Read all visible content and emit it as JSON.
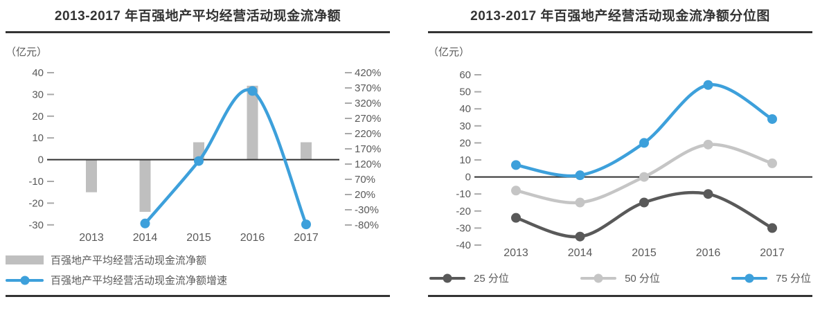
{
  "chart_data": [
    {
      "id": "avg-cashflow",
      "type": "bar+line",
      "title": "2013-2017 年百强地产平均经营活动现金流净额",
      "unit_label": "（亿元）",
      "categories": [
        "2013",
        "2014",
        "2015",
        "2016",
        "2017"
      ],
      "series": [
        {
          "name": "百强地产平均经营活动现金流净额",
          "type": "bar",
          "axis": "left",
          "color": "#bfbfbf",
          "values": [
            -15,
            -24,
            8,
            34,
            8
          ]
        },
        {
          "name": "百强地产平均经营活动现金流净额增速",
          "type": "line",
          "axis": "right",
          "color": "#3da0db",
          "values": [
            null,
            -75,
            130,
            360,
            -78
          ]
        }
      ],
      "left_axis": {
        "max": 40,
        "min": -30,
        "step": 10,
        "ticks": [
          "40",
          "30",
          "20",
          "10",
          "0",
          "-10",
          "-20",
          "-30"
        ]
      },
      "right_axis": {
        "max": 420,
        "min": -80,
        "step": 50,
        "ticks": [
          "420%",
          "370%",
          "320%",
          "270%",
          "220%",
          "170%",
          "120%",
          "70%",
          "20%",
          "-30%",
          "-80%"
        ]
      },
      "grid": false,
      "legend_position": "bottom-left"
    },
    {
      "id": "percentile",
      "type": "line",
      "title": "2013-2017 年百强地产经营活动现金流净额分位图",
      "unit_label": "（亿元）",
      "categories": [
        "2013",
        "2014",
        "2015",
        "2016",
        "2017"
      ],
      "series": [
        {
          "name": "25 分位",
          "type": "line",
          "axis": "left",
          "color": "#595959",
          "values": [
            -24,
            -35,
            -15,
            -10,
            -30
          ]
        },
        {
          "name": "50 分位",
          "type": "line",
          "axis": "left",
          "color": "#c5c5c5",
          "values": [
            -8,
            -15,
            0,
            19,
            8
          ]
        },
        {
          "name": "75 分位",
          "type": "line",
          "axis": "left",
          "color": "#3da0db",
          "values": [
            7,
            1,
            20,
            54,
            34
          ]
        }
      ],
      "left_axis": {
        "max": 60,
        "min": -40,
        "step": 10,
        "ticks": [
          "60",
          "50",
          "40",
          "30",
          "20",
          "10",
          "0",
          "-10",
          "-20",
          "-30",
          "-40"
        ]
      },
      "grid": false,
      "legend_position": "bottom"
    }
  ],
  "style": {
    "axis_line_color": "#303030",
    "tick_color": "#a9a9a9",
    "text_color": "#595959",
    "title_color": "#333333",
    "rule_color": "#333333"
  }
}
